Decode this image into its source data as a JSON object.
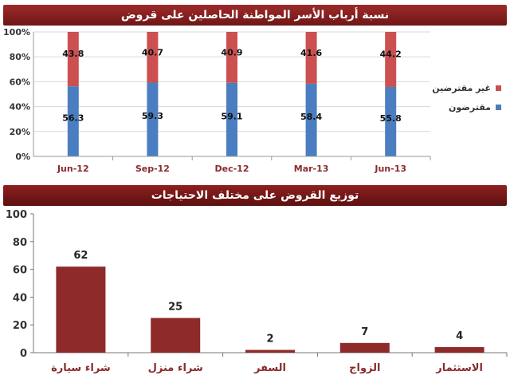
{
  "chart_data": [
    {
      "type": "bar",
      "stacked": true,
      "title": "نسبة أرباب الأسر المواطنة الحاصلين على قروض",
      "categories": [
        "Jun-12",
        "Sep-12",
        "Dec-12",
        "Mar-13",
        "Jun-13"
      ],
      "series": [
        {
          "name": "مقترضون",
          "values": [
            56.3,
            59.3,
            59.1,
            58.4,
            55.8
          ],
          "color": "#4a7ec0"
        },
        {
          "name": "غير مقترضين",
          "values": [
            43.8,
            40.7,
            40.9,
            41.6,
            44.2
          ],
          "color": "#cc5050"
        }
      ],
      "y_ticks": [
        "0%",
        "20%",
        "40%",
        "60%",
        "80%",
        "100%"
      ],
      "ylim": [
        0,
        100
      ],
      "legend_position": "right",
      "grid": true
    },
    {
      "type": "bar",
      "title": "توزيع القروض على مختلف الاحتياجات",
      "categories": [
        "شراء سيارة",
        "شراء منزل",
        "السفر",
        "الزواج",
        "الاستثمار"
      ],
      "values": [
        62,
        25,
        2,
        7,
        4
      ],
      "color": "#8e2a2a",
      "y_ticks": [
        "0",
        "20",
        "40",
        "60",
        "80",
        "100"
      ],
      "ylim": [
        0,
        100
      ],
      "grid": false
    }
  ]
}
